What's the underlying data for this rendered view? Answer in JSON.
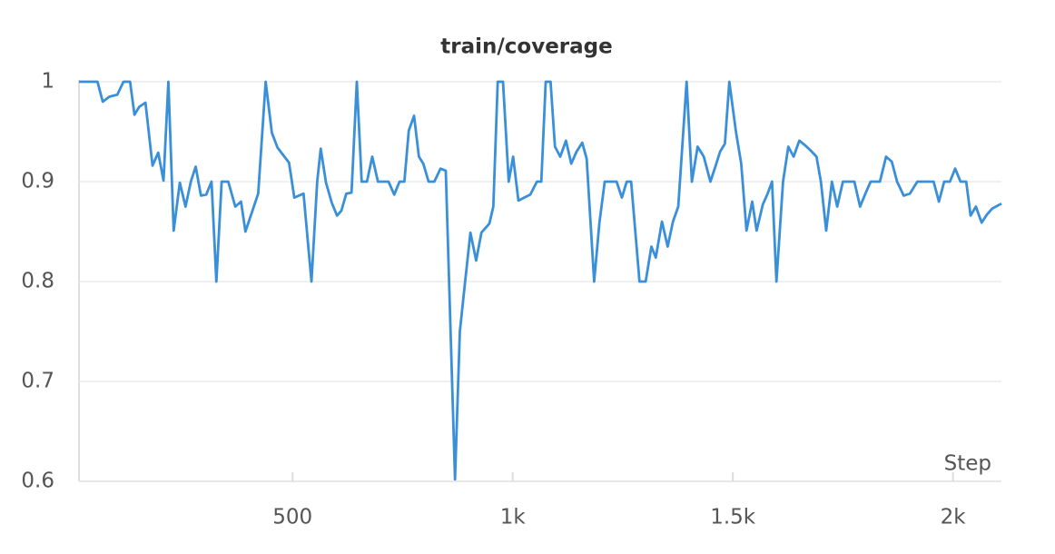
{
  "chart_data": {
    "type": "line",
    "title": "train/coverage",
    "x_label": "Step",
    "color": "#3a8fd9",
    "grid": true,
    "xlim": [
      15,
      2110
    ],
    "ylim": [
      0.6,
      1
    ],
    "xticks": [
      500,
      {
        "value": 1000,
        "label": "1k"
      },
      {
        "value": 1500,
        "label": "1.5k"
      },
      {
        "value": 2000,
        "label": "2k"
      }
    ],
    "yticks": [
      0.6,
      0.7,
      0.8,
      0.9,
      1
    ],
    "x": [
      15,
      57,
      69,
      84,
      102,
      116,
      131,
      141,
      152,
      166,
      182,
      195,
      207,
      218,
      230,
      244,
      257,
      269,
      280,
      292,
      304,
      316,
      327,
      339,
      354,
      370,
      383,
      393,
      422,
      439,
      453,
      466,
      492,
      504,
      525,
      543,
      556,
      564,
      576,
      589,
      601,
      611,
      622,
      634,
      646,
      657,
      669,
      681,
      694,
      706,
      718,
      731,
      743,
      754,
      764,
      776,
      787,
      797,
      809,
      822,
      836,
      848,
      869,
      880,
      892,
      904,
      917,
      929,
      947,
      956,
      966,
      978,
      991,
      1001,
      1013,
      1026,
      1040,
      1055,
      1065,
      1075,
      1086,
      1096,
      1108,
      1121,
      1133,
      1145,
      1158,
      1168,
      1185,
      1197,
      1209,
      1222,
      1236,
      1248,
      1259,
      1269,
      1288,
      1302,
      1315,
      1325,
      1339,
      1352,
      1364,
      1376,
      1395,
      1407,
      1420,
      1434,
      1449,
      1461,
      1471,
      1482,
      1492,
      1507,
      1519,
      1531,
      1544,
      1554,
      1568,
      1579,
      1589,
      1599,
      1614,
      1626,
      1638,
      1651,
      1665,
      1677,
      1690,
      1700,
      1712,
      1725,
      1737,
      1750,
      1764,
      1776,
      1789,
      1801,
      1813,
      1834,
      1848,
      1861,
      1873,
      1888,
      1902,
      1919,
      1931,
      1943,
      1956,
      1968,
      1980,
      1993,
      2005,
      2017,
      2030,
      2040,
      2052,
      2065,
      2077,
      2089,
      2110
    ],
    "values": [
      1,
      1,
      0.98,
      0.985,
      0.987,
      1,
      1,
      0.967,
      0.975,
      0.979,
      0.916,
      0.929,
      0.901,
      1,
      0.851,
      0.899,
      0.875,
      0.9,
      0.915,
      0.886,
      0.887,
      0.9,
      0.8,
      0.9,
      0.9,
      0.875,
      0.88,
      0.85,
      0.888,
      1,
      0.949,
      0.934,
      0.919,
      0.884,
      0.888,
      0.8,
      0.9,
      0.933,
      0.899,
      0.879,
      0.866,
      0.871,
      0.888,
      0.889,
      1,
      0.9,
      0.9,
      0.925,
      0.9,
      0.9,
      0.9,
      0.887,
      0.9,
      0.9,
      0.951,
      0.966,
      0.925,
      0.918,
      0.9,
      0.9,
      0.913,
      0.911,
      0.602,
      0.75,
      0.8,
      0.849,
      0.821,
      0.849,
      0.858,
      0.875,
      1,
      1,
      0.9,
      0.925,
      0.881,
      0.884,
      0.887,
      0.9,
      0.9,
      1,
      1,
      0.935,
      0.925,
      0.941,
      0.918,
      0.93,
      0.939,
      0.923,
      0.8,
      0.859,
      0.9,
      0.9,
      0.9,
      0.884,
      0.9,
      0.9,
      0.8,
      0.8,
      0.835,
      0.824,
      0.86,
      0.835,
      0.86,
      0.875,
      1,
      0.9,
      0.935,
      0.925,
      0.9,
      0.916,
      0.93,
      0.938,
      1,
      0.95,
      0.918,
      0.851,
      0.88,
      0.851,
      0.877,
      0.888,
      0.9,
      0.8,
      0.9,
      0.935,
      0.925,
      0.941,
      0.936,
      0.931,
      0.925,
      0.9,
      0.851,
      0.9,
      0.875,
      0.9,
      0.9,
      0.9,
      0.875,
      0.888,
      0.9,
      0.9,
      0.925,
      0.92,
      0.9,
      0.886,
      0.888,
      0.9,
      0.9,
      0.9,
      0.9,
      0.88,
      0.9,
      0.9,
      0.913,
      0.9,
      0.9,
      0.866,
      0.875,
      0.859,
      0.867,
      0.873,
      0.878
    ]
  }
}
